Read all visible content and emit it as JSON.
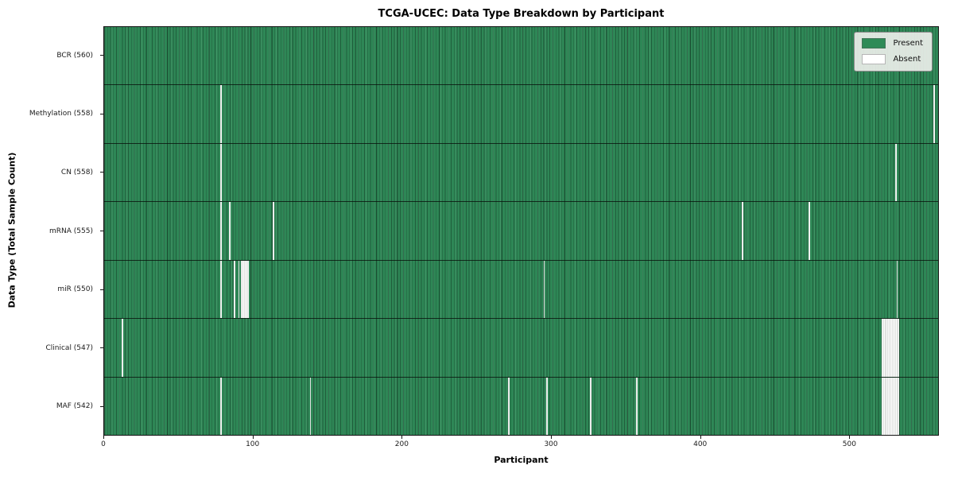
{
  "chart_data": {
    "type": "heatmap",
    "title": "TCGA-UCEC: Data Type Breakdown by Participant",
    "xlabel": "Participant",
    "ylabel": "Data Type (Total Sample Count)",
    "xlim": [
      0,
      560
    ],
    "n_participants": 560,
    "x_ticks": [
      0,
      100,
      200,
      300,
      400,
      500
    ],
    "grid": false,
    "legend_position": "upper right",
    "colors": {
      "present": "#2e8b57",
      "present_base": "#2e8756",
      "absent": "#ffffff",
      "row_divider": "#0a140a",
      "axis": "#151515",
      "legend_bg": "#ebeee9"
    },
    "legend": [
      {
        "label": "Present",
        "color": "#2e8b57"
      },
      {
        "label": "Absent",
        "color": "#ffffff"
      }
    ],
    "rows": [
      {
        "label": "BCR (560)",
        "present_count": 560,
        "absent_at": []
      },
      {
        "label": "Methylation (558)",
        "present_count": 558,
        "absent_at": [
          78,
          557
        ]
      },
      {
        "label": "CN (558)",
        "present_count": 558,
        "absent_at": [
          78,
          531
        ]
      },
      {
        "label": "mRNA (555)",
        "present_count": 555,
        "absent_at": [
          78,
          84,
          113,
          428,
          473
        ]
      },
      {
        "label": "miR (550)",
        "present_count": 550,
        "absent_at": [
          78,
          87,
          90,
          92,
          93,
          94,
          95,
          96,
          295,
          532
        ]
      },
      {
        "label": "Clinical (547)",
        "present_count": 547,
        "absent_at": [
          12,
          522,
          523,
          524,
          525,
          526,
          527,
          528,
          529,
          530,
          531,
          532,
          533
        ]
      },
      {
        "label": "MAF (542)",
        "present_count": 542,
        "absent_at": [
          78,
          138,
          271,
          297,
          326,
          357,
          522,
          523,
          524,
          525,
          526,
          527,
          528,
          529,
          530,
          531,
          532,
          533
        ]
      }
    ]
  }
}
